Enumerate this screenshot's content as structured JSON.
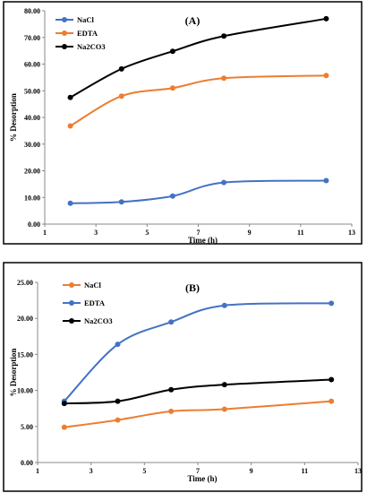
{
  "chart_data": [
    {
      "type": "line",
      "title": "(A)",
      "xlabel": "Time (h)",
      "ylabel": "% Desorption",
      "xlim": [
        1,
        13
      ],
      "ylim": [
        0,
        80
      ],
      "xticks": [
        1,
        3,
        5,
        7,
        9,
        11,
        13
      ],
      "yticks": [
        "0.00",
        "10.00",
        "20.00",
        "30.00",
        "40.00",
        "50.00",
        "60.00",
        "70.00",
        "80.00"
      ],
      "legend_position": "top-left",
      "x": [
        2,
        4,
        6,
        8,
        12
      ],
      "series": [
        {
          "name": "NaCl",
          "color": "#4472c4",
          "values": [
            7.8,
            8.3,
            10.5,
            15.6,
            16.3
          ]
        },
        {
          "name": "EDTA",
          "color": "#ed7d31",
          "values": [
            36.8,
            48.0,
            51.0,
            54.7,
            55.7
          ]
        },
        {
          "name": "Na2CO3",
          "color": "#000000",
          "values": [
            47.5,
            58.2,
            64.8,
            70.5,
            77.0
          ]
        }
      ]
    },
    {
      "type": "line",
      "title": "(B)",
      "xlabel": "Time (h)",
      "ylabel": "% Desorption",
      "xlim": [
        1,
        13
      ],
      "ylim": [
        0,
        25
      ],
      "xticks": [
        1,
        3,
        5,
        7,
        9,
        11,
        13
      ],
      "yticks": [
        "0.00",
        "5.00",
        "10.00",
        "15.00",
        "20.00",
        "25.00"
      ],
      "legend_position": "top-left",
      "x": [
        2,
        4,
        6,
        8,
        12
      ],
      "series": [
        {
          "name": "NaCl",
          "color": "#ed7d31",
          "values": [
            4.9,
            5.9,
            7.1,
            7.4,
            8.5
          ]
        },
        {
          "name": "EDTA",
          "color": "#4472c4",
          "values": [
            8.5,
            16.4,
            19.5,
            21.8,
            22.1
          ]
        },
        {
          "name": "Na2CO3",
          "color": "#000000",
          "values": [
            8.2,
            8.5,
            10.1,
            10.8,
            11.5
          ]
        }
      ]
    }
  ]
}
